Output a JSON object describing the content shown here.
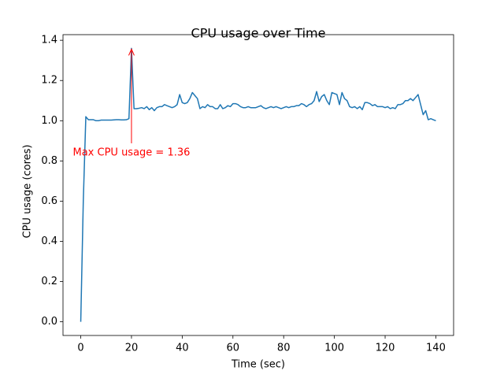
{
  "chart_data": {
    "type": "line",
    "title": "CPU usage over Time",
    "xlabel": "Time (sec)",
    "ylabel": "CPU usage (cores)",
    "x": [
      0,
      1,
      2,
      3,
      4,
      5,
      6,
      7,
      8,
      9,
      10,
      11,
      12,
      13,
      14,
      15,
      16,
      17,
      18,
      19,
      20,
      21,
      22,
      23,
      24,
      25,
      26,
      27,
      28,
      29,
      30,
      31,
      32,
      33,
      34,
      35,
      36,
      37,
      38,
      39,
      40,
      41,
      42,
      43,
      44,
      45,
      46,
      47,
      48,
      49,
      50,
      51,
      52,
      53,
      54,
      55,
      56,
      57,
      58,
      59,
      60,
      61,
      62,
      63,
      64,
      65,
      66,
      67,
      68,
      69,
      70,
      71,
      72,
      73,
      74,
      75,
      76,
      77,
      78,
      79,
      80,
      81,
      82,
      83,
      84,
      85,
      86,
      87,
      88,
      89,
      90,
      91,
      92,
      93,
      94,
      95,
      96,
      97,
      98,
      99,
      100,
      101,
      102,
      103,
      104,
      105,
      106,
      107,
      108,
      109,
      110,
      111,
      112,
      113,
      114,
      115,
      116,
      117,
      118,
      119,
      120,
      121,
      122,
      123,
      124,
      125,
      126,
      127,
      128,
      129,
      130,
      131,
      132,
      133,
      134,
      135,
      136,
      137,
      138,
      139,
      140
    ],
    "values": [
      0,
      0.6,
      1.02,
      1.005,
      1.005,
      1.005,
      1.0,
      1.0,
      1.003,
      1.003,
      1.003,
      1.003,
      1.003,
      1.004,
      1.005,
      1.005,
      1.004,
      1.004,
      1.005,
      1.01,
      1.36,
      1.06,
      1.06,
      1.062,
      1.065,
      1.06,
      1.07,
      1.055,
      1.065,
      1.05,
      1.065,
      1.07,
      1.07,
      1.08,
      1.075,
      1.07,
      1.065,
      1.07,
      1.08,
      1.13,
      1.09,
      1.085,
      1.09,
      1.11,
      1.14,
      1.125,
      1.11,
      1.06,
      1.07,
      1.065,
      1.08,
      1.07,
      1.07,
      1.06,
      1.06,
      1.08,
      1.06,
      1.065,
      1.075,
      1.07,
      1.085,
      1.085,
      1.08,
      1.07,
      1.065,
      1.065,
      1.07,
      1.065,
      1.065,
      1.065,
      1.07,
      1.075,
      1.065,
      1.06,
      1.065,
      1.07,
      1.065,
      1.07,
      1.065,
      1.06,
      1.065,
      1.07,
      1.065,
      1.07,
      1.07,
      1.075,
      1.075,
      1.085,
      1.08,
      1.07,
      1.08,
      1.085,
      1.1,
      1.145,
      1.095,
      1.12,
      1.13,
      1.1,
      1.08,
      1.14,
      1.135,
      1.13,
      1.08,
      1.14,
      1.11,
      1.1,
      1.07,
      1.065,
      1.07,
      1.06,
      1.07,
      1.055,
      1.09,
      1.09,
      1.085,
      1.075,
      1.08,
      1.07,
      1.07,
      1.07,
      1.065,
      1.07,
      1.06,
      1.065,
      1.06,
      1.08,
      1.08,
      1.085,
      1.1,
      1.1,
      1.11,
      1.1,
      1.115,
      1.13,
      1.08,
      1.03,
      1.05,
      1.005,
      1.01,
      1.005,
      1.0
    ],
    "color": "#1f77b4",
    "xlim": [
      -7,
      147
    ],
    "xticks": [
      0,
      20,
      40,
      60,
      80,
      100,
      120,
      140
    ],
    "ylim": [
      -0.068,
      1.428
    ],
    "yticks": [
      {
        "value": 0,
        "label": "0.0"
      },
      0.2,
      0.4,
      0.6,
      0.8,
      {
        "value": 1,
        "label": "1.0"
      },
      1.2,
      1.4
    ],
    "annotation": {
      "text": "Max CPU usage = 1.36",
      "color": "#ff0000"
    }
  }
}
